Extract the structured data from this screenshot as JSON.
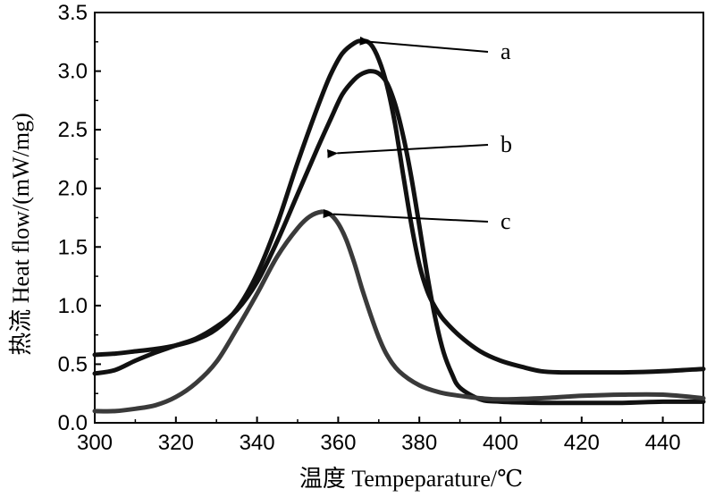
{
  "chart_data": {
    "type": "line",
    "title": "",
    "xlabel": "温度  Tempeparature/℃",
    "ylabel": "热流 Heat flow/(mW/mg)",
    "xlim": [
      300,
      450
    ],
    "ylim": [
      0.0,
      3.5
    ],
    "x_ticks": [
      "300",
      "320",
      "340",
      "360",
      "380",
      "400",
      "420",
      "440"
    ],
    "y_ticks": [
      "0.0",
      "0.5",
      "1.0",
      "1.5",
      "2.0",
      "2.5",
      "3.0",
      "3.5"
    ],
    "grid": false,
    "legend": "none",
    "series": [
      {
        "label": "a",
        "color": "#111111",
        "label_anchor": [
          366,
          3.25
        ],
        "x": [
          300,
          305,
          310,
          315,
          320,
          325,
          330,
          335,
          340,
          345,
          350,
          355,
          358,
          361,
          364,
          366,
          368,
          370,
          372,
          374,
          376,
          378,
          380,
          382,
          384,
          386,
          390,
          395,
          400,
          405,
          410,
          415,
          420,
          430,
          440,
          450
        ],
        "y": [
          0.58,
          0.59,
          0.61,
          0.63,
          0.66,
          0.71,
          0.8,
          0.97,
          1.27,
          1.7,
          2.22,
          2.7,
          2.96,
          3.15,
          3.24,
          3.26,
          3.23,
          3.1,
          2.88,
          2.55,
          2.12,
          1.7,
          1.35,
          1.12,
          0.98,
          0.88,
          0.74,
          0.61,
          0.53,
          0.48,
          0.44,
          0.43,
          0.43,
          0.43,
          0.44,
          0.46
        ]
      },
      {
        "label": "b",
        "color": "#111111",
        "label_anchor": [
          358,
          2.3
        ],
        "x": [
          300,
          305,
          310,
          315,
          320,
          325,
          330,
          335,
          340,
          345,
          350,
          355,
          358,
          361,
          364,
          366,
          368,
          370,
          372,
          374,
          376,
          378,
          380,
          382,
          384,
          386,
          388,
          390,
          395,
          400,
          410,
          420,
          430,
          440,
          450
        ],
        "y": [
          0.42,
          0.45,
          0.53,
          0.6,
          0.66,
          0.72,
          0.82,
          0.96,
          1.2,
          1.55,
          1.95,
          2.35,
          2.58,
          2.8,
          2.93,
          2.98,
          3.0,
          2.98,
          2.9,
          2.72,
          2.45,
          2.1,
          1.68,
          1.25,
          0.88,
          0.6,
          0.42,
          0.3,
          0.2,
          0.18,
          0.17,
          0.17,
          0.17,
          0.18,
          0.18
        ]
      },
      {
        "label": "c",
        "color": "#3a3a3a",
        "label_anchor": [
          357,
          1.78
        ],
        "x": [
          300,
          305,
          310,
          315,
          320,
          325,
          330,
          335,
          340,
          345,
          350,
          353,
          356,
          358,
          360,
          362,
          364,
          366,
          368,
          370,
          372,
          375,
          380,
          385,
          390,
          395,
          400,
          410,
          420,
          430,
          440,
          450
        ],
        "y": [
          0.1,
          0.1,
          0.12,
          0.15,
          0.22,
          0.34,
          0.52,
          0.8,
          1.1,
          1.42,
          1.66,
          1.76,
          1.8,
          1.78,
          1.7,
          1.56,
          1.36,
          1.13,
          0.92,
          0.73,
          0.58,
          0.44,
          0.32,
          0.26,
          0.23,
          0.21,
          0.2,
          0.21,
          0.23,
          0.24,
          0.24,
          0.21
        ]
      }
    ]
  }
}
